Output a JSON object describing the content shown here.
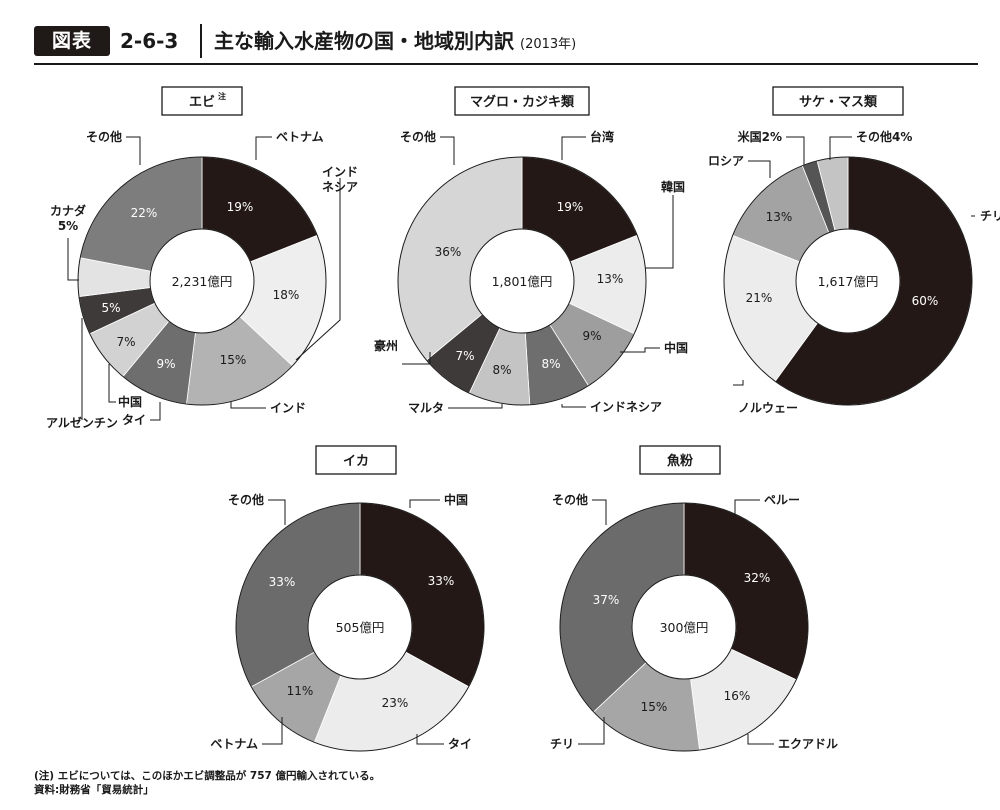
{
  "header": {
    "badge": "図表",
    "figure_number": "2-6-3",
    "title": "主な輸入水産物の国・地域別内訳",
    "year": "(2013年)"
  },
  "chart_data": [
    {
      "type": "pie",
      "title": "エビ",
      "title_note": "注",
      "center_label": "2,231億円",
      "slices": [
        {
          "label": "ベトナム",
          "value": 19,
          "value_label": "19%",
          "color": "#231815"
        },
        {
          "label": "インド\nネシア",
          "value": 18,
          "value_label": "18%",
          "color": "#eeeeee"
        },
        {
          "label": "インド",
          "value": 15,
          "value_label": "15%",
          "color": "#b3b3b3"
        },
        {
          "label": "タイ",
          "value": 9,
          "value_label": "9%",
          "color": "#6e6e6e"
        },
        {
          "label": "中国",
          "value": 7,
          "value_label": "7%",
          "color": "#d2d2d2"
        },
        {
          "label": "アルゼンチン",
          "value": 5,
          "value_label": "5%",
          "color": "#3e3a39"
        },
        {
          "label": "カナダ\n5%",
          "value": 5,
          "value_label": "",
          "color": "#e3e3e3"
        },
        {
          "label": "その他",
          "value": 22,
          "value_label": "22%",
          "color": "#7d7d7d"
        }
      ]
    },
    {
      "type": "pie",
      "title": "マグロ・カジキ類",
      "center_label": "1,801億円",
      "slices": [
        {
          "label": "台湾",
          "value": 19,
          "value_label": "19%",
          "color": "#231815"
        },
        {
          "label": "韓国",
          "value": 13,
          "value_label": "13%",
          "color": "#ececec"
        },
        {
          "label": "中国",
          "value": 9,
          "value_label": "9%",
          "color": "#9e9e9e"
        },
        {
          "label": "インドネシア",
          "value": 8,
          "value_label": "8%",
          "color": "#6e6e6e"
        },
        {
          "label": "マルタ",
          "value": 8,
          "value_label": "8%",
          "color": "#c4c4c4"
        },
        {
          "label": "豪州",
          "value": 7,
          "value_label": "7%",
          "color": "#3e3a39"
        },
        {
          "label": "その他",
          "value": 36,
          "value_label": "36%",
          "color": "#d6d6d6"
        }
      ]
    },
    {
      "type": "pie",
      "title": "サケ・マス類",
      "center_label": "1,617億円",
      "slices": [
        {
          "label": "チリ",
          "value": 60,
          "value_label": "60%",
          "color": "#231815"
        },
        {
          "label": "ノルウェー",
          "value": 21,
          "value_label": "21%",
          "color": "#ececec"
        },
        {
          "label": "ロシア",
          "value": 13,
          "value_label": "13%",
          "color": "#a3a3a3"
        },
        {
          "label": "米国2%",
          "value": 2,
          "value_label": "",
          "color": "#555555"
        },
        {
          "label": "その他4%",
          "value": 4,
          "value_label": "",
          "color": "#c4c4c4"
        }
      ]
    },
    {
      "type": "pie",
      "title": "イカ",
      "center_label": "505億円",
      "slices": [
        {
          "label": "中国",
          "value": 33,
          "value_label": "33%",
          "color": "#231815"
        },
        {
          "label": "タイ",
          "value": 23,
          "value_label": "23%",
          "color": "#ececec"
        },
        {
          "label": "ベトナム",
          "value": 11,
          "value_label": "11%",
          "color": "#a6a6a6"
        },
        {
          "label": "その他",
          "value": 33,
          "value_label": "33%",
          "color": "#6b6b6b"
        }
      ]
    },
    {
      "type": "pie",
      "title": "魚粉",
      "center_label": "300億円",
      "slices": [
        {
          "label": "ペルー",
          "value": 32,
          "value_label": "32%",
          "color": "#231815"
        },
        {
          "label": "エクアドル",
          "value": 16,
          "value_label": "16%",
          "color": "#ececec"
        },
        {
          "label": "チリ",
          "value": 15,
          "value_label": "15%",
          "color": "#a6a6a6"
        },
        {
          "label": "その他",
          "value": 37,
          "value_label": "37%",
          "color": "#6b6b6b"
        }
      ]
    }
  ],
  "notes": {
    "note": "(注) エビについては、このほかエビ調整品が 757 億円輸入されている。",
    "source": "資料:財務省「貿易統計」"
  }
}
